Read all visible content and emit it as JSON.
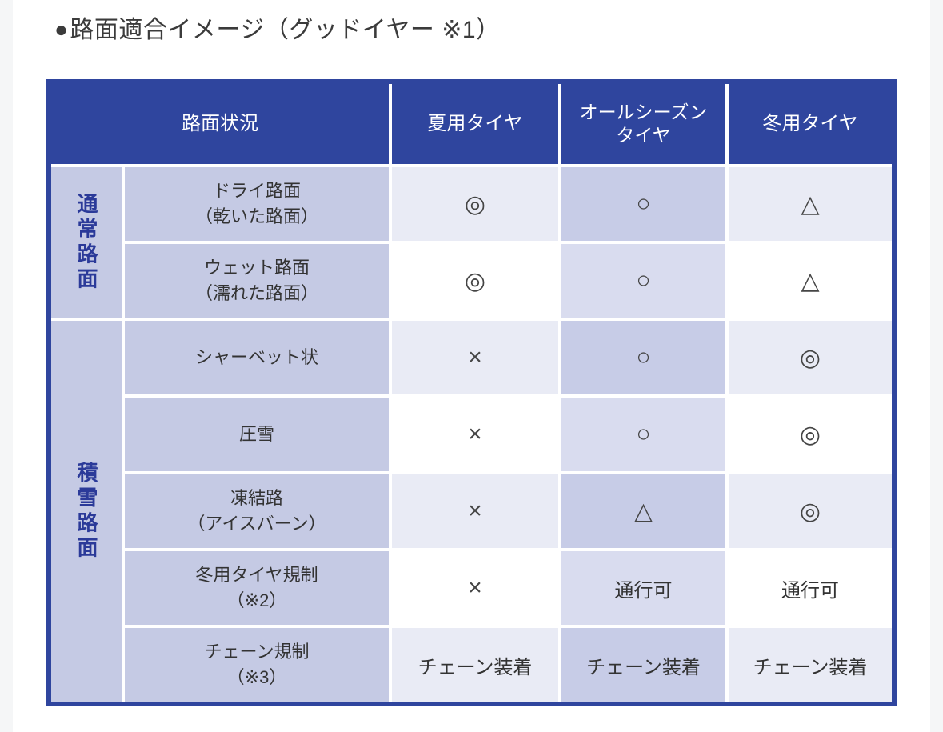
{
  "page": {
    "title_bullet": "●",
    "title": "路面適合イメージ（グッドイヤー ※1）"
  },
  "colors": {
    "header_blue": "#2F459E",
    "label_lavender": "#C5CAE4",
    "cell_light": "#E9EBF5",
    "cell_white": "#FFFFFF",
    "allseason_dark": "#C7CCE7",
    "allseason_light": "#D9DCEF",
    "category_text_blue": "#2B3A99"
  },
  "table": {
    "headers": {
      "condition": "路面状況",
      "summer": "夏用タイヤ",
      "all_season": "オールシーズン\nタイヤ",
      "winter": "冬用タイヤ"
    },
    "groups": [
      {
        "label": "通常路面",
        "rows": [
          {
            "condition": "ドライ路面\n（乾いた路面）",
            "summer": "◎",
            "all_season": "○",
            "winter": "△"
          },
          {
            "condition": "ウェット路面\n（濡れた路面）",
            "summer": "◎",
            "all_season": "○",
            "winter": "△"
          }
        ]
      },
      {
        "label": "積雪路面",
        "rows": [
          {
            "condition": "シャーベット状",
            "summer": "×",
            "all_season": "○",
            "winter": "◎"
          },
          {
            "condition": "圧雪",
            "summer": "×",
            "all_season": "○",
            "winter": "◎"
          },
          {
            "condition": "凍結路\n（アイスバーン）",
            "summer": "×",
            "all_season": "△",
            "winter": "◎"
          },
          {
            "condition": "冬用タイヤ規制\n（※2）",
            "summer": "×",
            "all_season": "通行可",
            "winter": "通行可"
          },
          {
            "condition": "チェーン規制\n（※3）",
            "summer": "チェーン装着",
            "all_season": "チェーン装着",
            "winter": "チェーン装着"
          }
        ]
      }
    ]
  }
}
